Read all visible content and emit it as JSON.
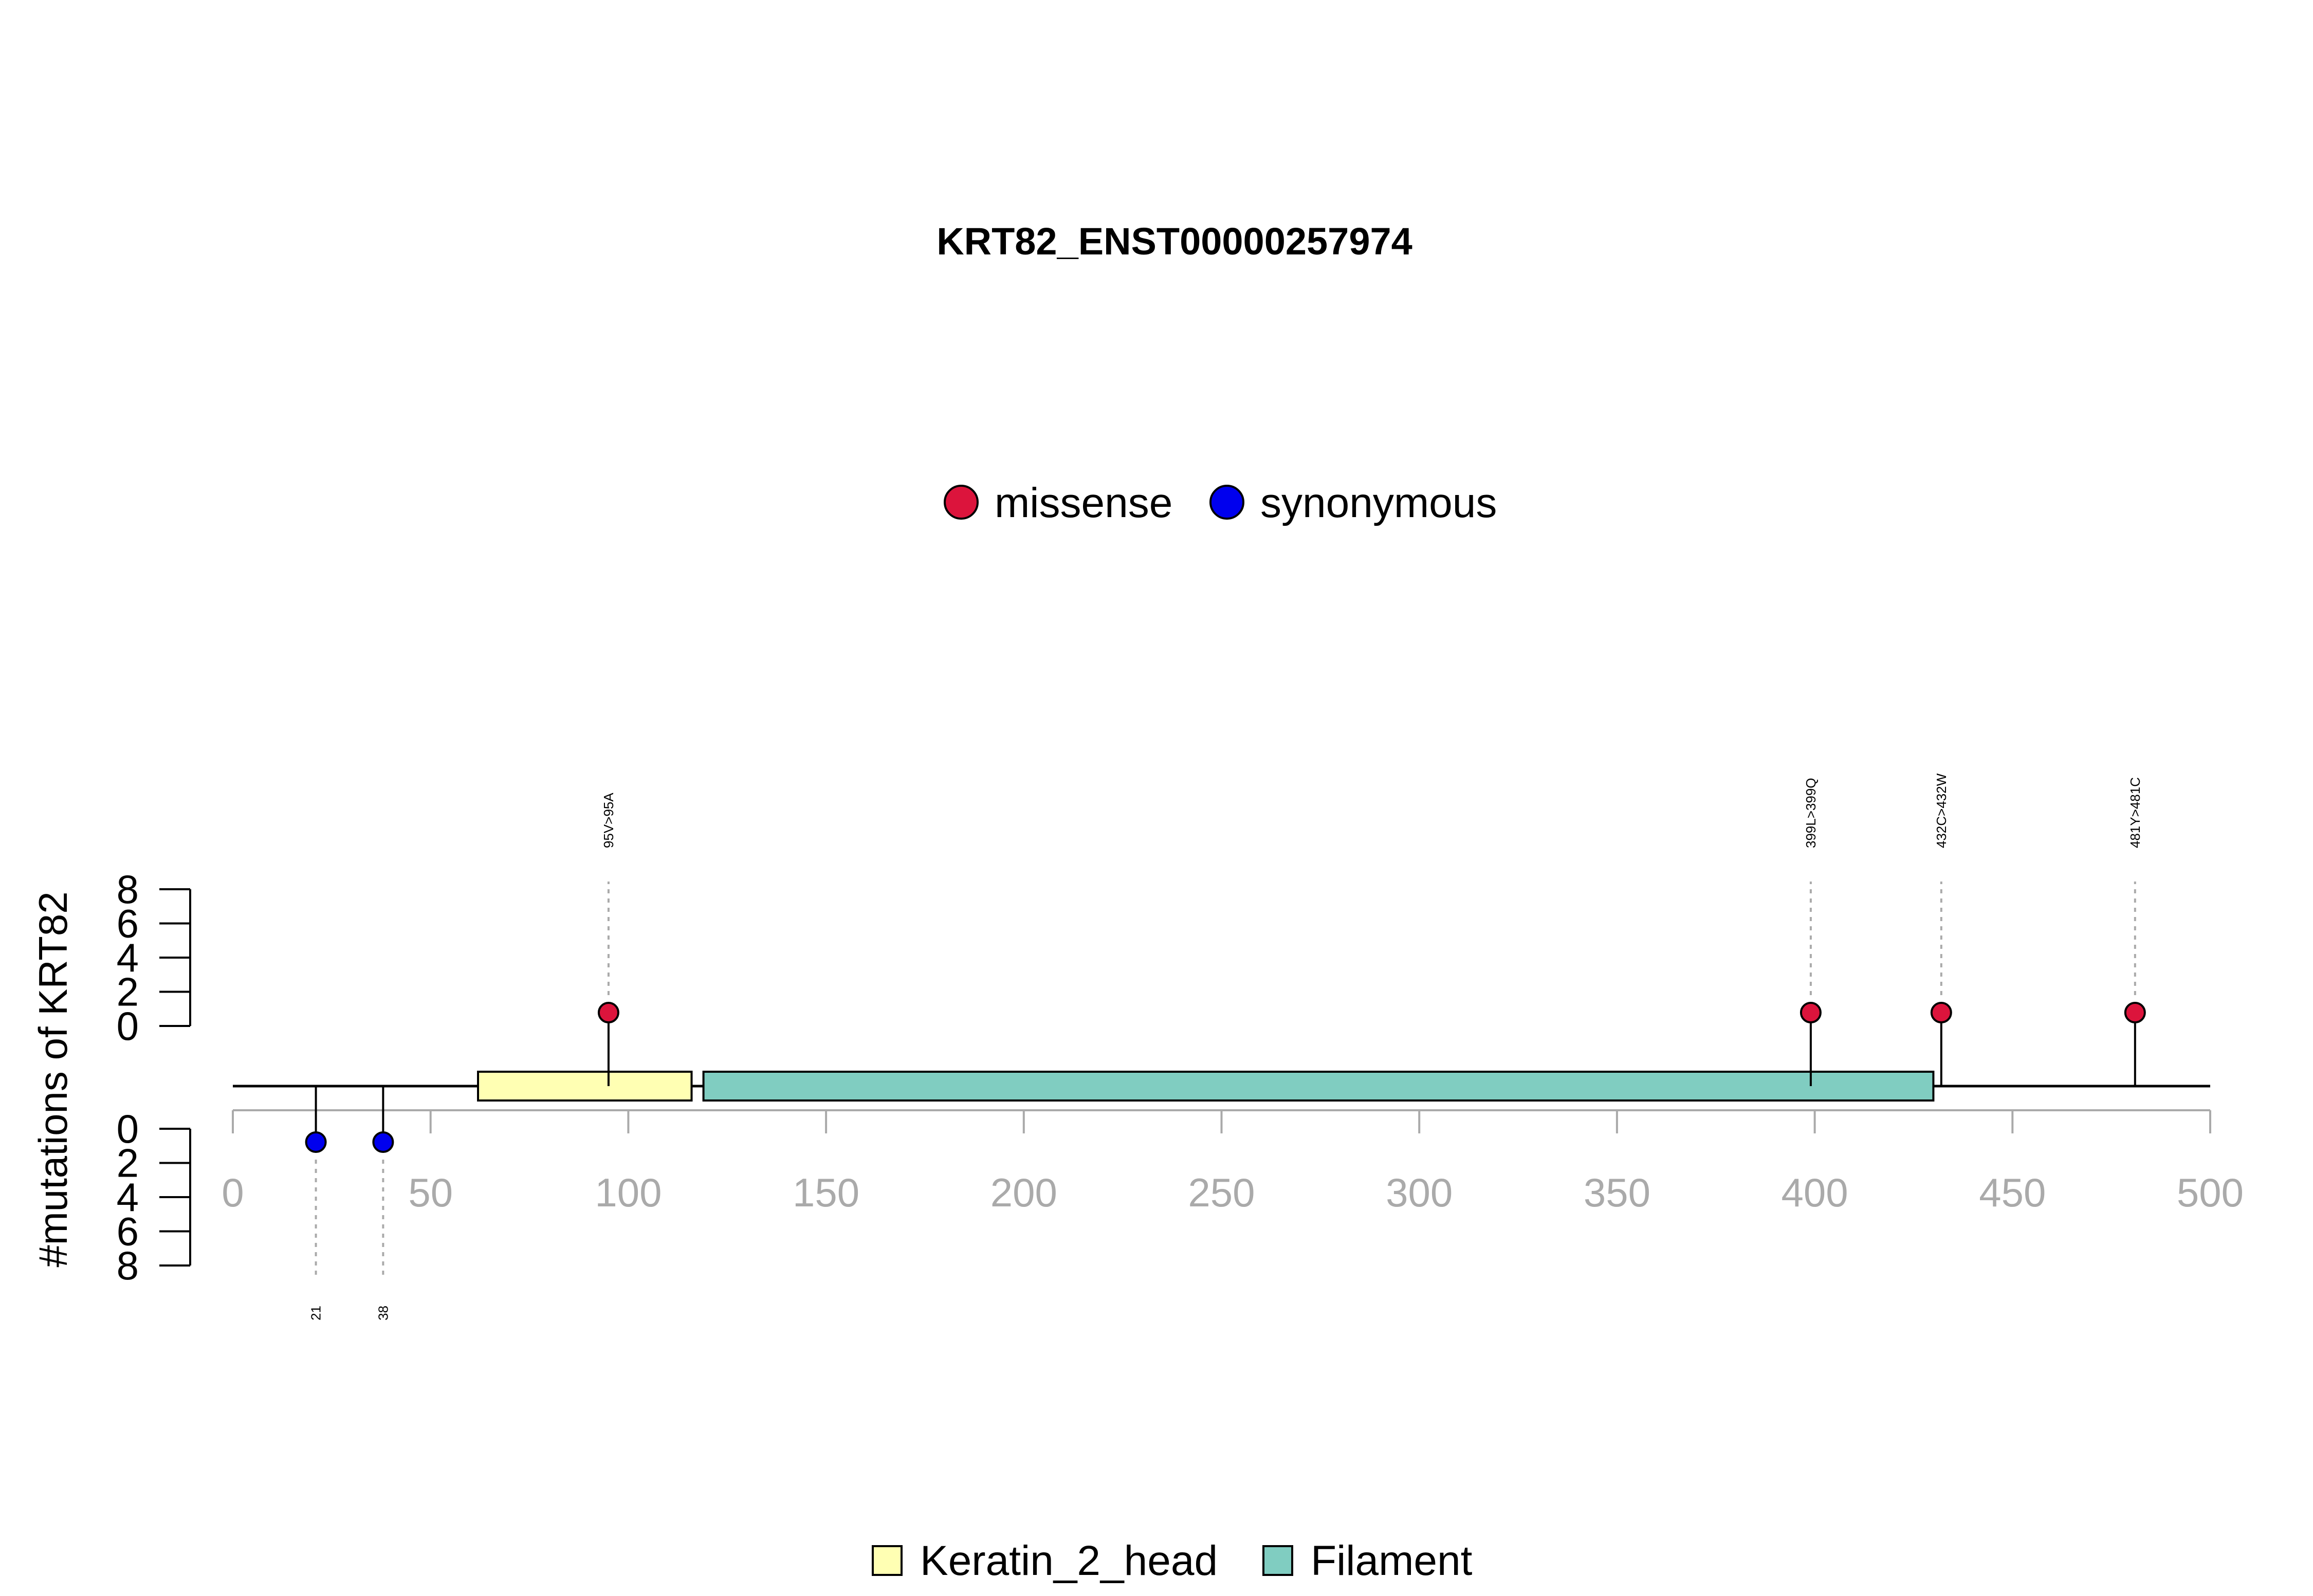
{
  "chart_data": {
    "type": "lollipop",
    "title": "KRT82_ENST00000257974",
    "ylabel": "#mutations of KRT82",
    "xlim": [
      0,
      500
    ],
    "x_ticks": [
      "0",
      "50",
      "100",
      "150",
      "200",
      "250",
      "300",
      "350",
      "400",
      "450",
      "500"
    ],
    "y_ticks": [
      "0",
      "2",
      "4",
      "6",
      "8"
    ],
    "ylim": [
      0,
      8
    ],
    "mutation_legend": [
      {
        "label": "missense",
        "color": "#dc143c"
      },
      {
        "label": "synonymous",
        "color": "#0000ee"
      }
    ],
    "domain_legend": [
      {
        "label": "Keratin_2_head",
        "color": "#ffffb3"
      },
      {
        "label": "Filament",
        "color": "#80cdc1"
      }
    ],
    "domains": [
      {
        "name": "Keratin_2_head",
        "start": 62,
        "end": 116,
        "color": "#ffffb3"
      },
      {
        "name": "Filament",
        "start": 119,
        "end": 430,
        "color": "#80cdc1"
      }
    ],
    "mutations_up": [
      {
        "position": 95,
        "count": 1,
        "type": "missense",
        "label": "95V>95A"
      },
      {
        "position": 399,
        "count": 1,
        "type": "missense",
        "label": "399L>399Q"
      },
      {
        "position": 432,
        "count": 1,
        "type": "missense",
        "label": "432C>432W"
      },
      {
        "position": 481,
        "count": 1,
        "type": "missense",
        "label": "481Y>481C"
      }
    ],
    "mutations_down": [
      {
        "position": 21,
        "count": 1,
        "type": "synonymous",
        "label": "21"
      },
      {
        "position": 38,
        "count": 1,
        "type": "synonymous",
        "label": "38"
      }
    ]
  }
}
